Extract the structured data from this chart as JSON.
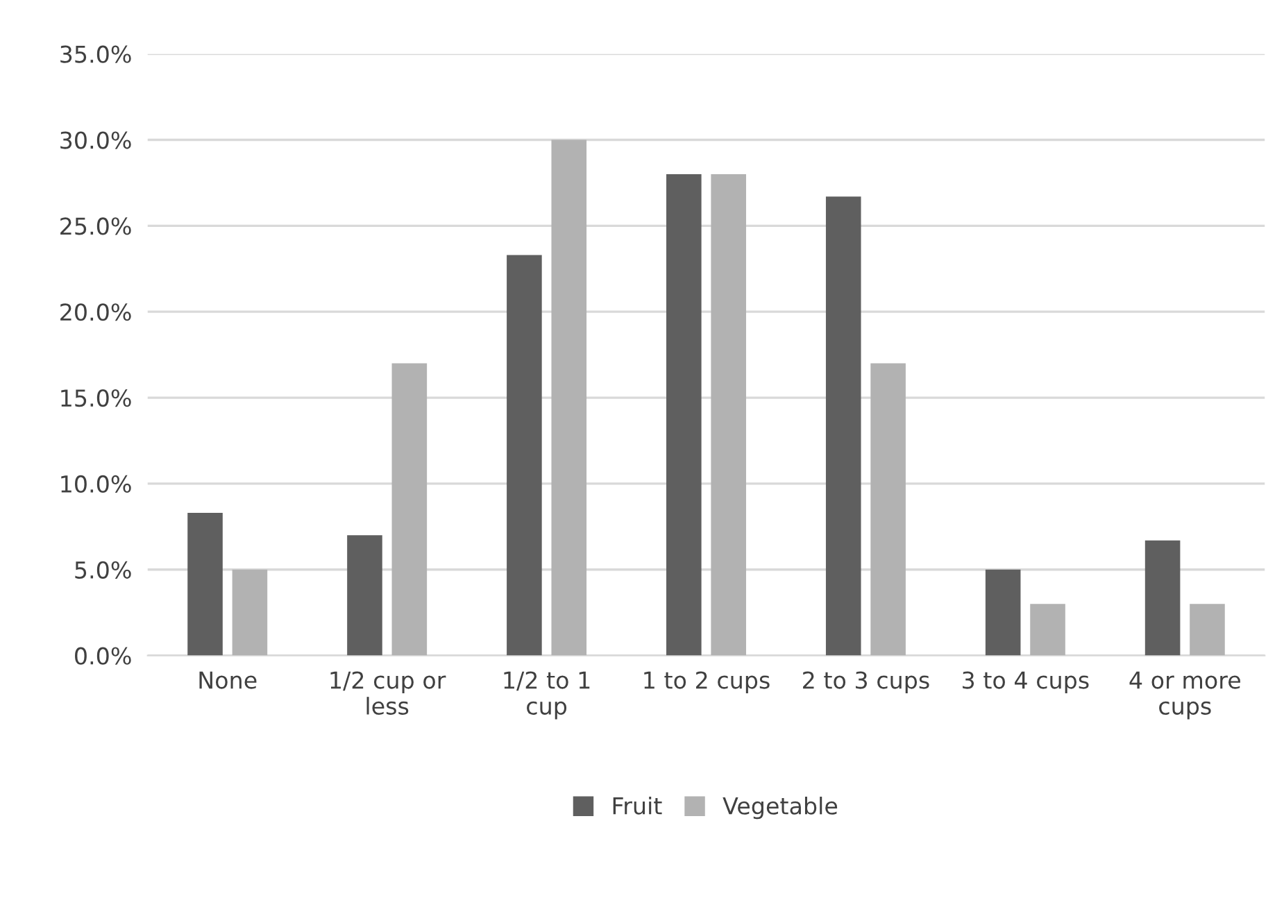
{
  "chart_data": {
    "type": "bar",
    "categories": [
      "None",
      "1/2 cup or\nless",
      "1/2 to 1\ncup",
      "1 to 2 cups",
      "2 to 3 cups",
      "3 to 4 cups",
      "4 or more\ncups"
    ],
    "series": [
      {
        "name": "Fruit",
        "color": "#5f5f5f",
        "values": [
          8.3,
          7.0,
          23.3,
          28.0,
          26.7,
          5.0,
          6.7
        ]
      },
      {
        "name": "Vegetable",
        "color": "#b2b2b2",
        "values": [
          5.0,
          17.0,
          30.0,
          28.0,
          17.0,
          3.0,
          3.0
        ]
      }
    ],
    "ylim": [
      0,
      35
    ],
    "yticks": [
      {
        "value": 0,
        "label": "0.0%"
      },
      {
        "value": 5,
        "label": "5.0%"
      },
      {
        "value": 10,
        "label": "10.0%"
      },
      {
        "value": 15,
        "label": "15.0%"
      },
      {
        "value": 20,
        "label": "20.0%"
      },
      {
        "value": 25,
        "label": "25.0%"
      },
      {
        "value": 30,
        "label": "30.0%"
      },
      {
        "value": 35,
        "label": "35.0%"
      }
    ],
    "grid": "y",
    "legend": "bottom"
  }
}
